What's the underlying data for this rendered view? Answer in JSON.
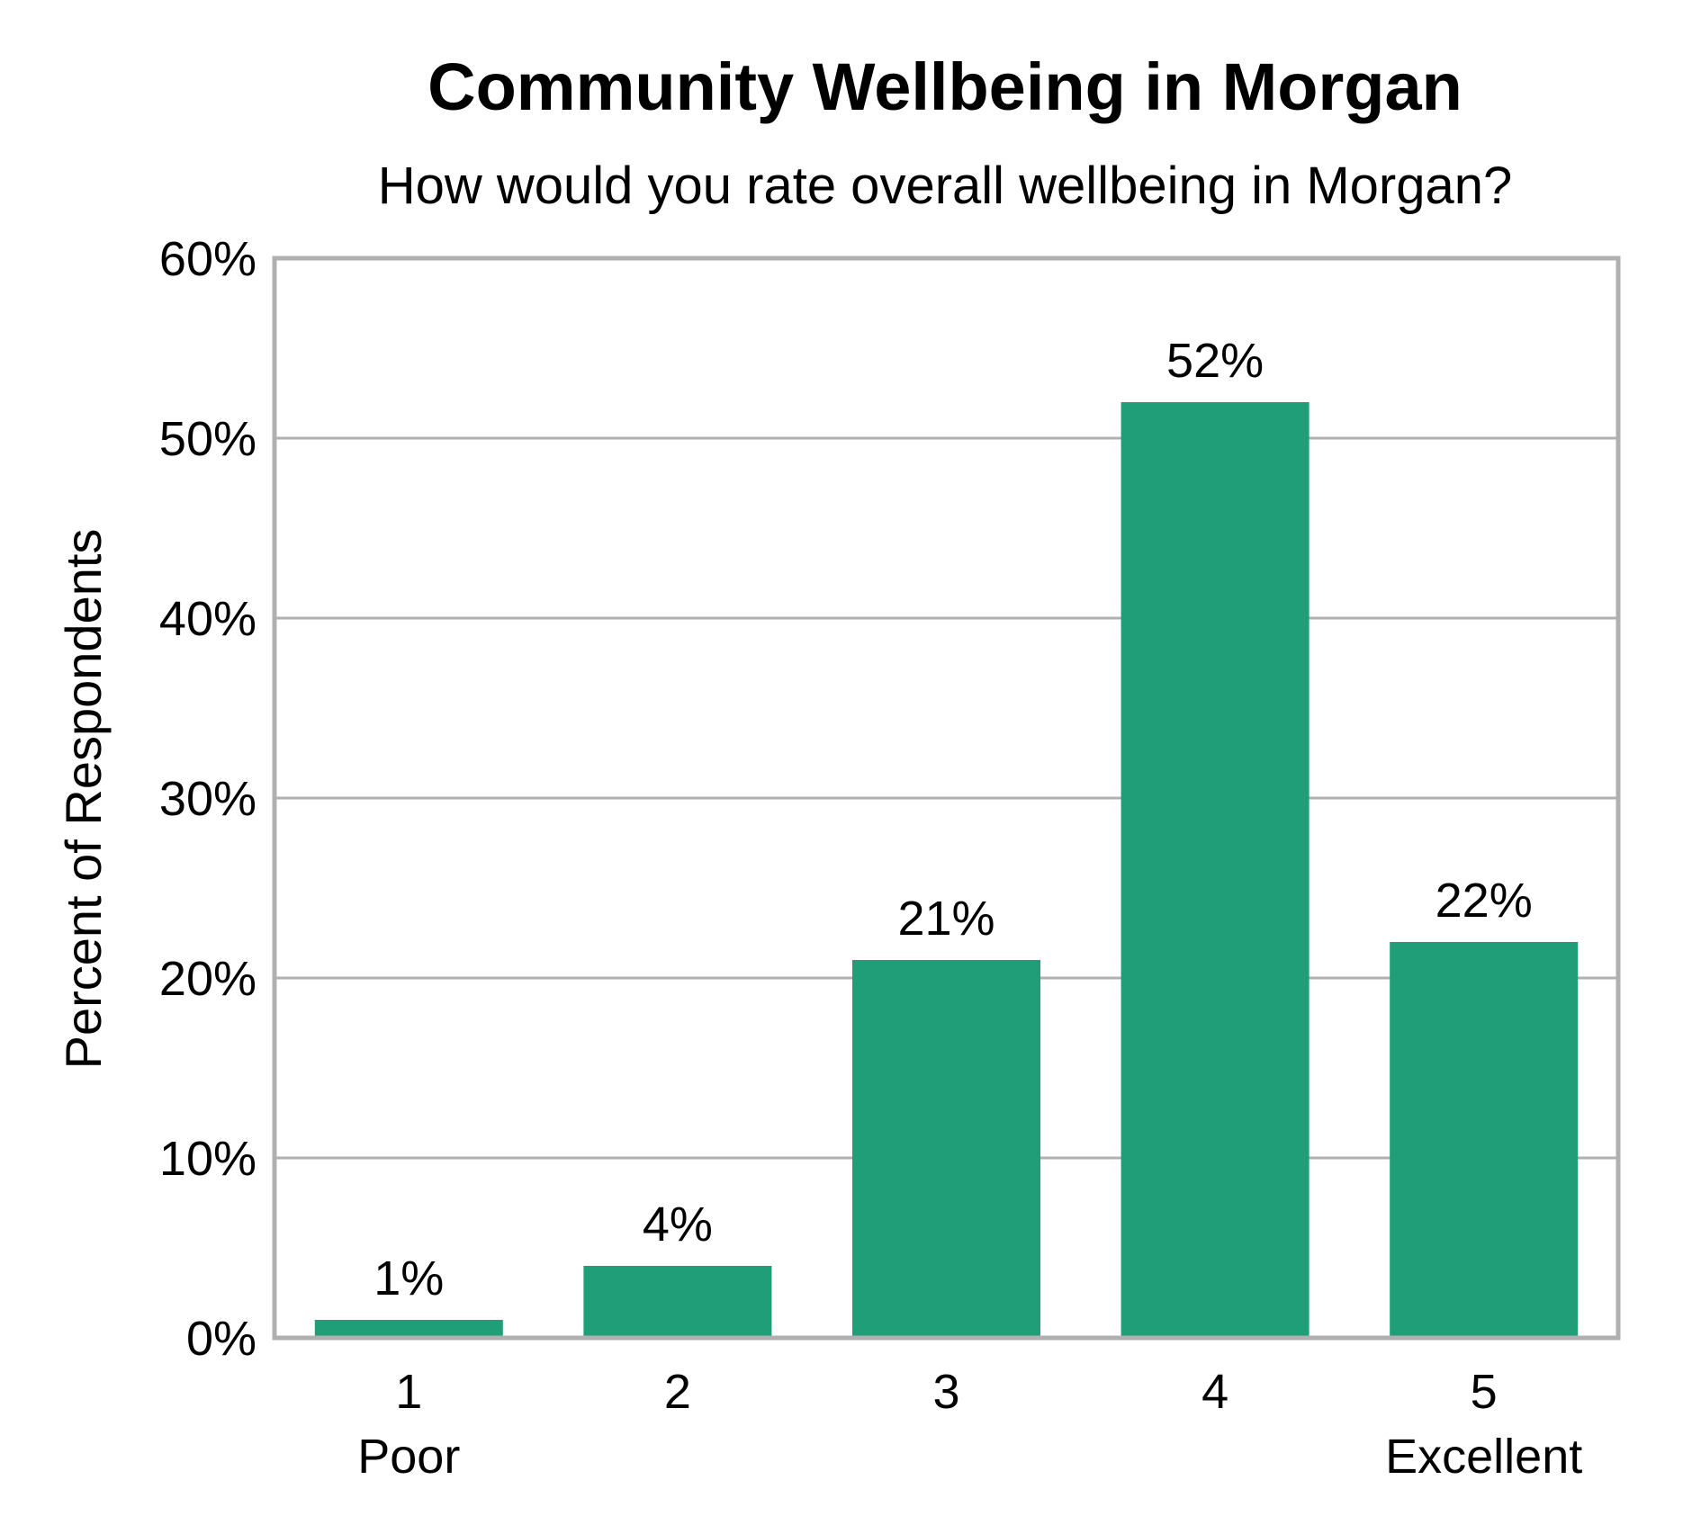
{
  "chart_data": {
    "type": "bar",
    "title": "Community Wellbeing in Morgan",
    "subtitle": "How would you rate overall wellbeing in Morgan?",
    "ylabel": "Percent of Respondents",
    "xlabel": "",
    "categories": [
      "1",
      "2",
      "3",
      "4",
      "5"
    ],
    "category_sublabels": [
      "Poor",
      "",
      "",
      "",
      "Excellent"
    ],
    "values": [
      1,
      4,
      21,
      52,
      22
    ],
    "data_labels": [
      "1%",
      "4%",
      "21%",
      "52%",
      "22%"
    ],
    "ylim": [
      0,
      60
    ],
    "yticks": [
      0,
      10,
      20,
      30,
      40,
      50,
      60
    ],
    "ytick_labels": [
      "0%",
      "10%",
      "20%",
      "30%",
      "40%",
      "50%",
      "60%"
    ],
    "grid": true,
    "legend": "none",
    "bar_color": "#1f9e78",
    "grid_color": "#b0b0b0"
  }
}
